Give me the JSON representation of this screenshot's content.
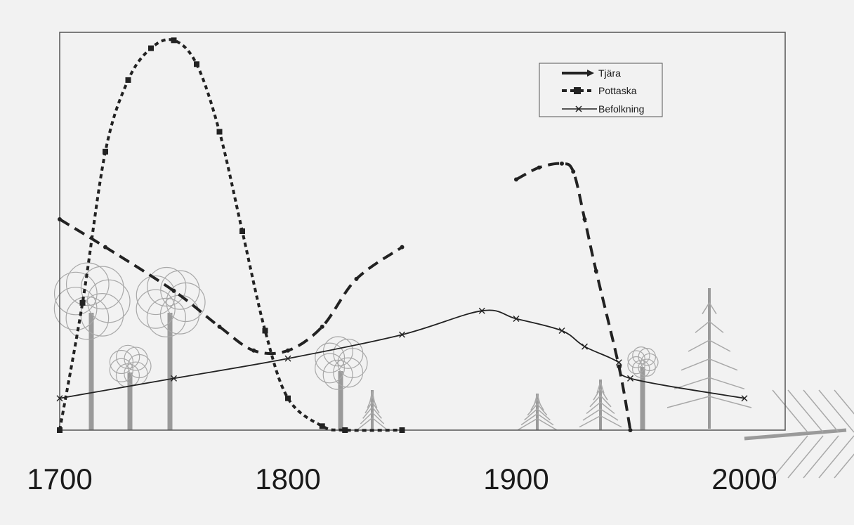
{
  "chart_data": {
    "type": "line",
    "title": "",
    "xlabel": "",
    "ylabel": "",
    "xlim": [
      1700,
      2000
    ],
    "ylim": [
      0,
      100
    ],
    "x_ticks": [
      "1700",
      "1800",
      "1900",
      "2000"
    ],
    "grid": false,
    "legend": "top-right",
    "series": [
      {
        "name": "Tjära",
        "style": "long-dash",
        "color": "#222222",
        "segments": [
          [
            [
              1700,
              53
            ],
            [
              1720,
              46
            ],
            [
              1750,
              35
            ],
            [
              1770,
              26
            ],
            [
              1785,
              20
            ],
            [
              1800,
              20
            ],
            [
              1815,
              26
            ],
            [
              1830,
              38
            ],
            [
              1850,
              46
            ]
          ],
          [
            [
              1900,
              63
            ],
            [
              1910,
              66
            ],
            [
              1920,
              67
            ],
            [
              1925,
              65
            ],
            [
              1930,
              53
            ],
            [
              1935,
              40
            ],
            [
              1945,
              16
            ],
            [
              1950,
              0
            ]
          ]
        ]
      },
      {
        "name": "Pottaska",
        "style": "short-dash",
        "color": "#222222",
        "segments": [
          [
            [
              1700,
              0
            ],
            [
              1710,
              32
            ],
            [
              1720,
              70
            ],
            [
              1730,
              88
            ],
            [
              1740,
              96
            ],
            [
              1750,
              98
            ],
            [
              1760,
              92
            ],
            [
              1770,
              75
            ],
            [
              1780,
              50
            ],
            [
              1790,
              25
            ],
            [
              1800,
              8
            ],
            [
              1815,
              1
            ],
            [
              1825,
              0
            ],
            [
              1850,
              0
            ]
          ]
        ]
      },
      {
        "name": "Befolkning",
        "style": "solid",
        "color": "#222222",
        "segments": [
          [
            [
              1700,
              8
            ],
            [
              1750,
              13
            ],
            [
              1800,
              18
            ],
            [
              1850,
              24
            ],
            [
              1885,
              30
            ],
            [
              1900,
              28
            ],
            [
              1920,
              25
            ],
            [
              1930,
              21
            ],
            [
              1945,
              17
            ],
            [
              1950,
              13
            ],
            [
              2000,
              8
            ]
          ]
        ]
      }
    ]
  }
}
